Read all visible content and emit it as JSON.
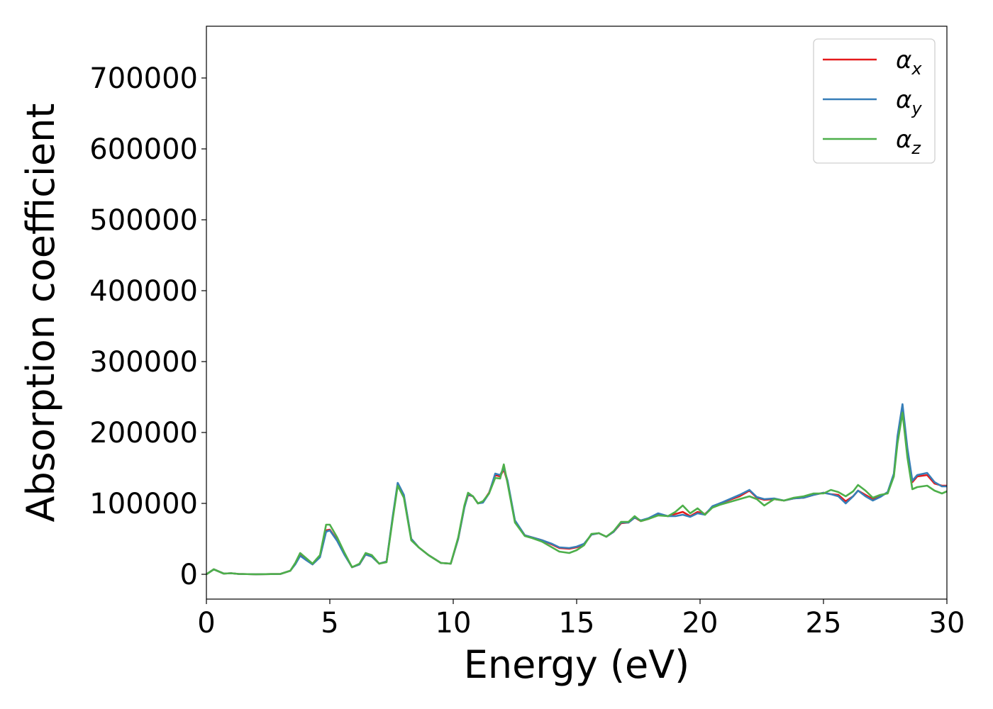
{
  "chart_data": {
    "type": "line",
    "xlabel": "Energy (eV)",
    "ylabel": "Absorption coefficient",
    "xlim": [
      0,
      30
    ],
    "ylim": [
      -35000,
      773000
    ],
    "xticks": [
      0,
      5,
      10,
      15,
      20,
      25,
      30
    ],
    "yticks": [
      0,
      100000,
      200000,
      300000,
      400000,
      500000,
      600000,
      700000
    ],
    "grid": false,
    "legend_position": "upper right",
    "series": [
      {
        "name": "αx",
        "symbol": "α",
        "subscript": "x",
        "color": "#e41a1c",
        "x": [
          0,
          0.3,
          0.5,
          0.7,
          1.0,
          1.3,
          2.0,
          3.0,
          3.4,
          3.6,
          3.8,
          4.0,
          4.3,
          4.6,
          4.85,
          5.0,
          5.3,
          5.6,
          5.9,
          6.2,
          6.45,
          6.7,
          7.0,
          7.3,
          7.55,
          7.75,
          8.0,
          8.3,
          8.6,
          9.0,
          9.5,
          9.9,
          10.2,
          10.45,
          10.6,
          10.8,
          11.0,
          11.2,
          11.45,
          11.7,
          11.9,
          12.05,
          12.2,
          12.5,
          12.9,
          13.2,
          13.6,
          14.0,
          14.3,
          14.7,
          15.0,
          15.3,
          15.6,
          15.9,
          16.2,
          16.5,
          16.8,
          17.1,
          17.35,
          17.6,
          17.9,
          18.3,
          18.7,
          19.0,
          19.3,
          19.6,
          19.9,
          20.2,
          20.5,
          20.8,
          21.2,
          21.6,
          22.0,
          22.3,
          22.6,
          23.0,
          23.4,
          23.8,
          24.2,
          24.6,
          25.0,
          25.3,
          25.6,
          25.9,
          26.2,
          26.4,
          26.7,
          27.0,
          27.3,
          27.6,
          27.85,
          28.0,
          28.2,
          28.4,
          28.6,
          28.8,
          29.2,
          29.5,
          29.8,
          30.0
        ],
        "y": [
          0,
          7000,
          4000,
          1000,
          1500,
          500,
          0,
          500,
          5000,
          15000,
          27000,
          22000,
          14000,
          25000,
          62000,
          63000,
          48000,
          28000,
          10000,
          14000,
          28000,
          25000,
          15000,
          18000,
          80000,
          127000,
          110000,
          50000,
          38000,
          27000,
          16000,
          15000,
          50000,
          95000,
          112000,
          110000,
          100000,
          102000,
          115000,
          140000,
          138000,
          148000,
          130000,
          75000,
          55000,
          52000,
          48000,
          42000,
          37000,
          36000,
          38000,
          42000,
          56000,
          58000,
          53000,
          60000,
          72000,
          73000,
          80000,
          75000,
          78000,
          84000,
          82000,
          85000,
          88000,
          82000,
          88000,
          85000,
          95000,
          100000,
          105000,
          110000,
          118000,
          108000,
          105000,
          106000,
          104000,
          107000,
          108000,
          112000,
          115000,
          113000,
          112000,
          103000,
          110000,
          118000,
          112000,
          106000,
          110000,
          115000,
          140000,
          190000,
          235000,
          175000,
          130000,
          138000,
          140000,
          128000,
          125000,
          125000
        ]
      },
      {
        "name": "αy",
        "symbol": "α",
        "subscript": "y",
        "color": "#377eb8",
        "x": [
          0,
          0.3,
          0.5,
          0.7,
          1.0,
          1.3,
          2.0,
          3.0,
          3.4,
          3.6,
          3.8,
          4.0,
          4.3,
          4.6,
          4.85,
          5.0,
          5.3,
          5.6,
          5.9,
          6.2,
          6.45,
          6.7,
          7.0,
          7.3,
          7.55,
          7.75,
          8.0,
          8.3,
          8.6,
          9.0,
          9.5,
          9.9,
          10.2,
          10.45,
          10.6,
          10.8,
          11.0,
          11.2,
          11.45,
          11.7,
          11.9,
          12.05,
          12.2,
          12.5,
          12.9,
          13.2,
          13.6,
          14.0,
          14.3,
          14.7,
          15.0,
          15.3,
          15.6,
          15.9,
          16.2,
          16.5,
          16.8,
          17.1,
          17.35,
          17.6,
          17.9,
          18.3,
          18.7,
          19.0,
          19.3,
          19.6,
          19.9,
          20.2,
          20.5,
          20.8,
          21.2,
          21.6,
          22.0,
          22.3,
          22.6,
          23.0,
          23.4,
          23.8,
          24.2,
          24.6,
          25.0,
          25.3,
          25.6,
          25.9,
          26.2,
          26.4,
          26.7,
          27.0,
          27.3,
          27.6,
          27.85,
          28.0,
          28.2,
          28.4,
          28.6,
          28.8,
          29.2,
          29.5,
          29.8,
          30.0
        ],
        "y": [
          0,
          7000,
          4000,
          1000,
          1500,
          500,
          0,
          500,
          5000,
          14000,
          26000,
          21000,
          14000,
          24000,
          60000,
          62000,
          47000,
          27000,
          10000,
          14000,
          28000,
          25000,
          15000,
          18000,
          82000,
          129000,
          112000,
          50000,
          38000,
          27000,
          16000,
          15000,
          50000,
          94000,
          113000,
          110000,
          100000,
          101000,
          114000,
          142000,
          140000,
          150000,
          132000,
          76000,
          55000,
          52000,
          48000,
          43000,
          38000,
          37000,
          39000,
          43000,
          56000,
          58000,
          53000,
          60000,
          73000,
          73000,
          80000,
          76000,
          79000,
          86000,
          82000,
          82000,
          84000,
          81000,
          86000,
          84000,
          96000,
          100000,
          106000,
          112000,
          119000,
          109000,
          106000,
          107000,
          104000,
          107000,
          108000,
          112000,
          115000,
          113000,
          110000,
          100000,
          110000,
          118000,
          110000,
          104000,
          109000,
          116000,
          142000,
          195000,
          240000,
          178000,
          132000,
          140000,
          143000,
          130000,
          124000,
          124000
        ]
      },
      {
        "name": "αz",
        "symbol": "α",
        "subscript": "z",
        "color": "#4daf4a",
        "x": [
          0,
          0.3,
          0.5,
          0.7,
          1.0,
          1.3,
          2.0,
          3.0,
          3.4,
          3.6,
          3.8,
          4.0,
          4.3,
          4.6,
          4.85,
          5.0,
          5.3,
          5.6,
          5.9,
          6.2,
          6.45,
          6.7,
          7.0,
          7.3,
          7.55,
          7.75,
          8.0,
          8.3,
          8.6,
          9.0,
          9.5,
          9.9,
          10.2,
          10.45,
          10.6,
          10.8,
          11.0,
          11.2,
          11.45,
          11.7,
          11.9,
          12.05,
          12.2,
          12.5,
          12.9,
          13.2,
          13.6,
          14.0,
          14.3,
          14.7,
          15.0,
          15.3,
          15.6,
          15.9,
          16.2,
          16.5,
          16.8,
          17.1,
          17.35,
          17.6,
          17.9,
          18.3,
          18.7,
          19.0,
          19.3,
          19.6,
          19.9,
          20.2,
          20.5,
          20.8,
          21.2,
          21.6,
          22.0,
          22.3,
          22.6,
          23.0,
          23.4,
          23.8,
          24.2,
          24.6,
          25.0,
          25.3,
          25.6,
          25.9,
          26.2,
          26.4,
          26.7,
          27.0,
          27.3,
          27.6,
          27.85,
          28.0,
          28.2,
          28.4,
          28.6,
          28.8,
          29.2,
          29.5,
          29.8,
          30.0
        ],
        "y": [
          0,
          7000,
          4000,
          1000,
          1500,
          500,
          0,
          500,
          5000,
          16000,
          30000,
          24000,
          15000,
          27000,
          70000,
          70000,
          52000,
          30000,
          10000,
          15000,
          30000,
          27000,
          15000,
          17000,
          78000,
          125000,
          108000,
          48000,
          38000,
          27000,
          16000,
          15000,
          52000,
          97000,
          115000,
          110000,
          100000,
          103000,
          114000,
          136000,
          135000,
          155000,
          128000,
          73000,
          54000,
          51000,
          46000,
          38000,
          32000,
          30000,
          34000,
          41000,
          57000,
          58000,
          53000,
          61000,
          74000,
          74000,
          82000,
          75000,
          78000,
          83000,
          82000,
          88000,
          97000,
          86000,
          93000,
          84000,
          94000,
          98000,
          102000,
          106000,
          110000,
          106000,
          97000,
          106000,
          104000,
          108000,
          110000,
          114000,
          114000,
          119000,
          116000,
          110000,
          117000,
          126000,
          118000,
          108000,
          112000,
          114000,
          138000,
          185000,
          228000,
          165000,
          120000,
          123000,
          125000,
          118000,
          114000,
          117000
        ]
      }
    ]
  }
}
